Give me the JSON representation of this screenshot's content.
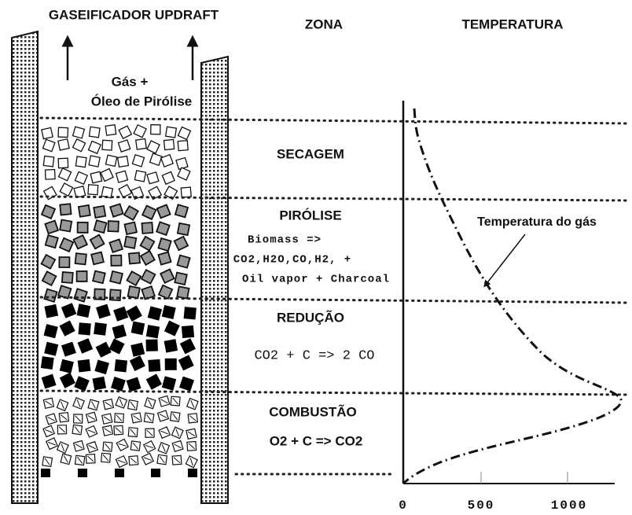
{
  "title": "GASEIFICADOR UPDRAFT",
  "zone_header": "ZONA",
  "temperature_header": "TEMPERATURA",
  "outlet": {
    "line1": "Gás +",
    "line2": "Óleo de Pirólise"
  },
  "zones": [
    {
      "name": "SECAGEM"
    },
    {
      "name": "PIRÓLISE",
      "reaction": [
        "Biomass =>",
        "CO2,H2O,CO,H2, +",
        "Oil vapor + Charcoal"
      ]
    },
    {
      "name": "REDUÇÃO",
      "reaction": [
        "CO2 + C => 2 CO"
      ]
    },
    {
      "name": "COMBUSTÃO",
      "reaction": [
        "O2 + C => CO2"
      ]
    }
  ],
  "temperature_axis": {
    "ticks": [
      "0",
      "500",
      "1000"
    ]
  },
  "curve_label": "Temperatura do gás"
}
